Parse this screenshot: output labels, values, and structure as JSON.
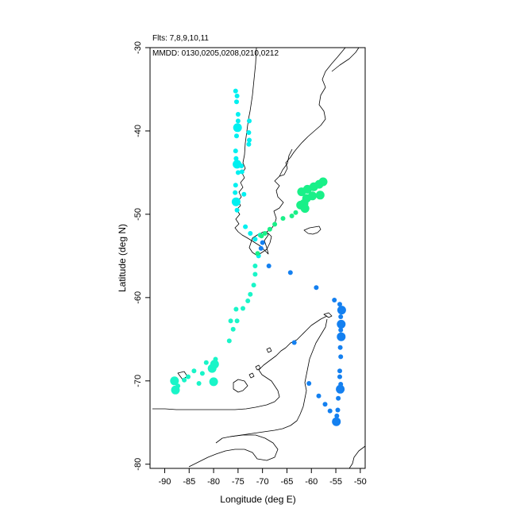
{
  "header": {
    "flights": "Flts: 7,8,9,10,11",
    "dates": "MMDD: 0130,0205,0208,0210,0212"
  },
  "chart_data": {
    "type": "scatter",
    "xlabel": "Longitude (deg E)",
    "ylabel": "Latitude (deg N)",
    "xlim": [
      -93,
      -49
    ],
    "ylim": [
      -80.5,
      -30
    ],
    "xticks": [
      -90,
      -85,
      -80,
      -75,
      -70,
      -65,
      -60,
      -55,
      -50
    ],
    "yticks": [
      -30,
      -40,
      -50,
      -60,
      -70,
      -80
    ],
    "grid": false,
    "colors": {
      "cyan": "#00f0f0",
      "aqua": "#19f5c8",
      "green": "#19f088",
      "blue": "#1480f0"
    },
    "points": [
      {
        "lon": -75.5,
        "lat": -35.2,
        "size": "s",
        "color": "cyan"
      },
      {
        "lon": -75.2,
        "lat": -35.8,
        "size": "s",
        "color": "cyan"
      },
      {
        "lon": -75.3,
        "lat": -36.5,
        "size": "s",
        "color": "cyan"
      },
      {
        "lon": -75.0,
        "lat": -38.0,
        "size": "s",
        "color": "cyan"
      },
      {
        "lon": -75.0,
        "lat": -38.8,
        "size": "s",
        "color": "cyan"
      },
      {
        "lon": -75.1,
        "lat": -39.6,
        "size": "l",
        "color": "cyan"
      },
      {
        "lon": -75.3,
        "lat": -40.6,
        "size": "s",
        "color": "cyan"
      },
      {
        "lon": -75.5,
        "lat": -42.4,
        "size": "s",
        "color": "cyan"
      },
      {
        "lon": -75.4,
        "lat": -43.3,
        "size": "s",
        "color": "cyan"
      },
      {
        "lon": -75.2,
        "lat": -44.0,
        "size": "l",
        "color": "cyan"
      },
      {
        "lon": -75.0,
        "lat": -45.0,
        "size": "s",
        "color": "cyan"
      },
      {
        "lon": -74.3,
        "lat": -44.2,
        "size": "s",
        "color": "cyan"
      },
      {
        "lon": -74.2,
        "lat": -44.9,
        "size": "s",
        "color": "cyan"
      },
      {
        "lon": -75.5,
        "lat": -46.5,
        "size": "s",
        "color": "cyan"
      },
      {
        "lon": -75.6,
        "lat": -47.4,
        "size": "s",
        "color": "cyan"
      },
      {
        "lon": -75.4,
        "lat": -48.5,
        "size": "l",
        "color": "cyan"
      },
      {
        "lon": -75.2,
        "lat": -49.5,
        "size": "s",
        "color": "cyan"
      },
      {
        "lon": -73.8,
        "lat": -47.6,
        "size": "s",
        "color": "cyan"
      },
      {
        "lon": -72.8,
        "lat": -40.2,
        "size": "s",
        "color": "cyan"
      },
      {
        "lon": -72.7,
        "lat": -41.1,
        "size": "s",
        "color": "cyan"
      },
      {
        "lon": -72.8,
        "lat": -41.6,
        "size": "s",
        "color": "cyan"
      },
      {
        "lon": -72.7,
        "lat": -38.8,
        "size": "s",
        "color": "cyan"
      },
      {
        "lon": -73.5,
        "lat": -51.5,
        "size": "s",
        "color": "cyan"
      },
      {
        "lon": -72.5,
        "lat": -52.3,
        "size": "s",
        "color": "cyan"
      },
      {
        "lon": -71.5,
        "lat": -53.0,
        "size": "s",
        "color": "cyan"
      },
      {
        "lon": -70.5,
        "lat": -52.5,
        "size": "s",
        "color": "aqua"
      },
      {
        "lon": -70.0,
        "lat": -53.4,
        "size": "s",
        "color": "blue"
      },
      {
        "lon": -70.3,
        "lat": -54.1,
        "size": "s",
        "color": "blue"
      },
      {
        "lon": -70.8,
        "lat": -55.0,
        "size": "s",
        "color": "cyan"
      },
      {
        "lon": -71.5,
        "lat": -56.2,
        "size": "s",
        "color": "aqua"
      },
      {
        "lon": -71.5,
        "lat": -57.2,
        "size": "s",
        "color": "aqua"
      },
      {
        "lon": -71.8,
        "lat": -58.5,
        "size": "s",
        "color": "aqua"
      },
      {
        "lon": -72.5,
        "lat": -59.6,
        "size": "s",
        "color": "aqua"
      },
      {
        "lon": -73.0,
        "lat": -60.4,
        "size": "s",
        "color": "aqua"
      },
      {
        "lon": -74.0,
        "lat": -61.3,
        "size": "s",
        "color": "aqua"
      },
      {
        "lon": -75.4,
        "lat": -61.4,
        "size": "s",
        "color": "aqua"
      },
      {
        "lon": -75.2,
        "lat": -62.8,
        "size": "s",
        "color": "aqua"
      },
      {
        "lon": -76.5,
        "lat": -62.8,
        "size": "s",
        "color": "aqua"
      },
      {
        "lon": -76.0,
        "lat": -63.8,
        "size": "s",
        "color": "aqua"
      },
      {
        "lon": -76.8,
        "lat": -65.2,
        "size": "s",
        "color": "aqua"
      },
      {
        "lon": -79.6,
        "lat": -67.4,
        "size": "s",
        "color": "aqua"
      },
      {
        "lon": -79.8,
        "lat": -68.0,
        "size": "l",
        "color": "aqua"
      },
      {
        "lon": -80.3,
        "lat": -68.5,
        "size": "l",
        "color": "aqua"
      },
      {
        "lon": -81.5,
        "lat": -67.8,
        "size": "s",
        "color": "aqua"
      },
      {
        "lon": -82.3,
        "lat": -69.1,
        "size": "s",
        "color": "aqua"
      },
      {
        "lon": -84.0,
        "lat": -68.8,
        "size": "s",
        "color": "aqua"
      },
      {
        "lon": -85.2,
        "lat": -69.5,
        "size": "s",
        "color": "aqua"
      },
      {
        "lon": -86.0,
        "lat": -69.9,
        "size": "s",
        "color": "aqua"
      },
      {
        "lon": -88.0,
        "lat": -70.0,
        "size": "l",
        "color": "aqua"
      },
      {
        "lon": -87.3,
        "lat": -70.6,
        "size": "s",
        "color": "aqua"
      },
      {
        "lon": -87.8,
        "lat": -71.1,
        "size": "l",
        "color": "aqua"
      },
      {
        "lon": -80.0,
        "lat": -70.1,
        "size": "l",
        "color": "aqua"
      },
      {
        "lon": -83.0,
        "lat": -70.3,
        "size": "s",
        "color": "aqua"
      },
      {
        "lon": -62.0,
        "lat": -47.3,
        "size": "l",
        "color": "green"
      },
      {
        "lon": -60.8,
        "lat": -47.0,
        "size": "l",
        "color": "green"
      },
      {
        "lon": -59.5,
        "lat": -46.7,
        "size": "l",
        "color": "green"
      },
      {
        "lon": -58.4,
        "lat": -46.4,
        "size": "l",
        "color": "green"
      },
      {
        "lon": -57.6,
        "lat": -46.1,
        "size": "l",
        "color": "green"
      },
      {
        "lon": -61.0,
        "lat": -48.1,
        "size": "l",
        "color": "green"
      },
      {
        "lon": -59.8,
        "lat": -47.8,
        "size": "l",
        "color": "green"
      },
      {
        "lon": -58.2,
        "lat": -47.7,
        "size": "l",
        "color": "green"
      },
      {
        "lon": -61.5,
        "lat": -48.7,
        "size": "l",
        "color": "green"
      },
      {
        "lon": -62.2,
        "lat": -48.9,
        "size": "l",
        "color": "green"
      },
      {
        "lon": -61.3,
        "lat": -49.3,
        "size": "l",
        "color": "green"
      },
      {
        "lon": -63.2,
        "lat": -49.8,
        "size": "s",
        "color": "green"
      },
      {
        "lon": -64.0,
        "lat": -50.2,
        "size": "s",
        "color": "green"
      },
      {
        "lon": -65.8,
        "lat": -50.5,
        "size": "s",
        "color": "green"
      },
      {
        "lon": -67.5,
        "lat": -51.2,
        "size": "s",
        "color": "green"
      },
      {
        "lon": -68.5,
        "lat": -51.8,
        "size": "s",
        "color": "green"
      },
      {
        "lon": -69.5,
        "lat": -52.3,
        "size": "s",
        "color": "green"
      },
      {
        "lon": -70.2,
        "lat": -52.6,
        "size": "s",
        "color": "green"
      },
      {
        "lon": -71.0,
        "lat": -54.7,
        "size": "s",
        "color": "green"
      },
      {
        "lon": -68.7,
        "lat": -56.2,
        "size": "s",
        "color": "blue"
      },
      {
        "lon": -64.3,
        "lat": -57.0,
        "size": "s",
        "color": "blue"
      },
      {
        "lon": -59.0,
        "lat": -58.8,
        "size": "s",
        "color": "blue"
      },
      {
        "lon": -55.3,
        "lat": -60.3,
        "size": "s",
        "color": "blue"
      },
      {
        "lon": -54.2,
        "lat": -60.8,
        "size": "s",
        "color": "blue"
      },
      {
        "lon": -53.8,
        "lat": -61.5,
        "size": "l",
        "color": "blue"
      },
      {
        "lon": -54.0,
        "lat": -62.3,
        "size": "s",
        "color": "blue"
      },
      {
        "lon": -53.9,
        "lat": -63.2,
        "size": "l",
        "color": "blue"
      },
      {
        "lon": -54.0,
        "lat": -63.9,
        "size": "s",
        "color": "blue"
      },
      {
        "lon": -53.9,
        "lat": -64.7,
        "size": "l",
        "color": "blue"
      },
      {
        "lon": -54.1,
        "lat": -66.0,
        "size": "s",
        "color": "blue"
      },
      {
        "lon": -54.0,
        "lat": -67.1,
        "size": "s",
        "color": "blue"
      },
      {
        "lon": -54.2,
        "lat": -68.8,
        "size": "s",
        "color": "blue"
      },
      {
        "lon": -54.2,
        "lat": -69.5,
        "size": "s",
        "color": "blue"
      },
      {
        "lon": -54.0,
        "lat": -70.4,
        "size": "s",
        "color": "blue"
      },
      {
        "lon": -54.1,
        "lat": -71.0,
        "size": "l",
        "color": "blue"
      },
      {
        "lon": -54.5,
        "lat": -72.1,
        "size": "s",
        "color": "blue"
      },
      {
        "lon": -54.6,
        "lat": -73.5,
        "size": "s",
        "color": "blue"
      },
      {
        "lon": -54.8,
        "lat": -74.2,
        "size": "s",
        "color": "blue"
      },
      {
        "lon": -54.9,
        "lat": -74.9,
        "size": "l",
        "color": "blue"
      },
      {
        "lon": -56.2,
        "lat": -73.6,
        "size": "s",
        "color": "blue"
      },
      {
        "lon": -57.2,
        "lat": -72.8,
        "size": "s",
        "color": "blue"
      },
      {
        "lon": -58.5,
        "lat": -71.8,
        "size": "s",
        "color": "blue"
      },
      {
        "lon": -60.5,
        "lat": -70.3,
        "size": "s",
        "color": "blue"
      },
      {
        "lon": -63.5,
        "lat": -65.4,
        "size": "s",
        "color": "blue"
      }
    ]
  }
}
